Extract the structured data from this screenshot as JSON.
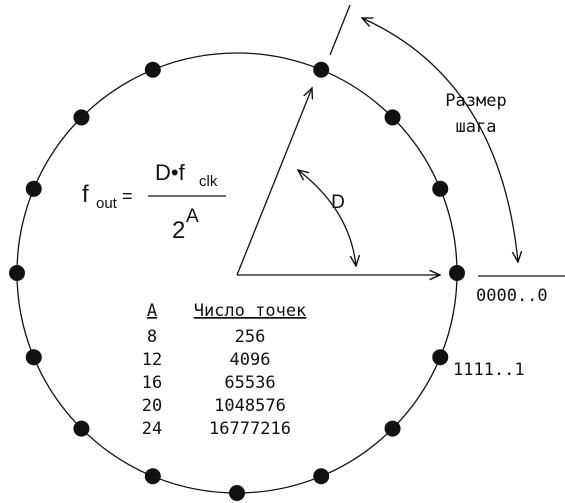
{
  "step_size_label": [
    "Размер",
    "шага"
  ],
  "angle_label": "D",
  "formula": {
    "lhs": "f",
    "lhs_sub": "out",
    "equals": "=",
    "numerator": "D•f",
    "numerator_sub": "clk",
    "denominator": "2",
    "denominator_sup": "A"
  },
  "table": {
    "header": [
      "A",
      "Число точек"
    ],
    "rows": [
      [
        "8",
        "256"
      ],
      [
        "12",
        "4096"
      ],
      [
        "16",
        "65536"
      ],
      [
        "20",
        "1048576"
      ],
      [
        "24",
        "16777216"
      ]
    ]
  },
  "zero_label": "0000..0",
  "ones_label": "1111..1"
}
